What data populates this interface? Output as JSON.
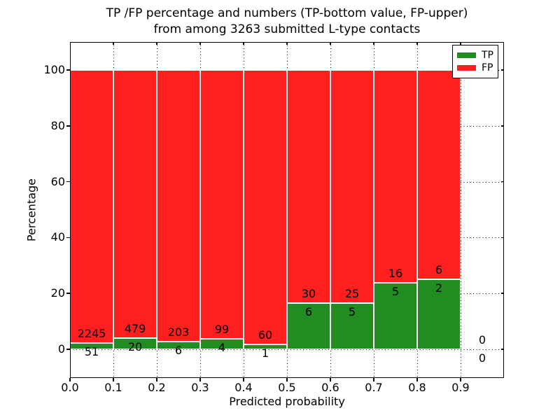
{
  "chart_data": {
    "type": "bar",
    "stacked": true,
    "title_line1": "TP /FP percentage and numbers (TP-bottom value, FP-upper)",
    "title_line2": "from among 3263 submitted L-type contacts",
    "xlabel": "Predicted probability",
    "ylabel": "Percentage",
    "xlim": [
      0.0,
      1.0
    ],
    "ylim": [
      -10.3,
      110.3
    ],
    "x_tick_labels": [
      "0.0",
      "0.1",
      "0.2",
      "0.3",
      "0.4",
      "0.5",
      "0.6",
      "0.7",
      "0.8",
      "0.9"
    ],
    "y_tick_values": [
      0,
      20,
      40,
      60,
      80,
      100
    ],
    "grid": "dotted both axes",
    "bar_bin_width": 0.1,
    "note": "Each bar stacks to 100%; TP percentage = tp/(tp+fp)*100; labels show FP count above TP count",
    "bins": [
      {
        "range": "0.0-0.1",
        "tp": 51,
        "fp": 2245
      },
      {
        "range": "0.1-0.2",
        "tp": 20,
        "fp": 479
      },
      {
        "range": "0.2-0.3",
        "tp": 6,
        "fp": 203
      },
      {
        "range": "0.3-0.4",
        "tp": 4,
        "fp": 99
      },
      {
        "range": "0.4-0.5",
        "tp": 1,
        "fp": 60
      },
      {
        "range": "0.5-0.6",
        "tp": 6,
        "fp": 30
      },
      {
        "range": "0.6-0.7",
        "tp": 5,
        "fp": 25
      },
      {
        "range": "0.7-0.8",
        "tp": 5,
        "fp": 16
      },
      {
        "range": "0.8-0.9",
        "tp": 2,
        "fp": 6
      },
      {
        "range": "0.9-1.0",
        "tp": 0,
        "fp": 0
      }
    ],
    "legend": {
      "position": "upper right",
      "entries": [
        {
          "label": "TP",
          "color": "#228b22"
        },
        {
          "label": "FP",
          "color": "#ff1f1f"
        }
      ]
    }
  }
}
